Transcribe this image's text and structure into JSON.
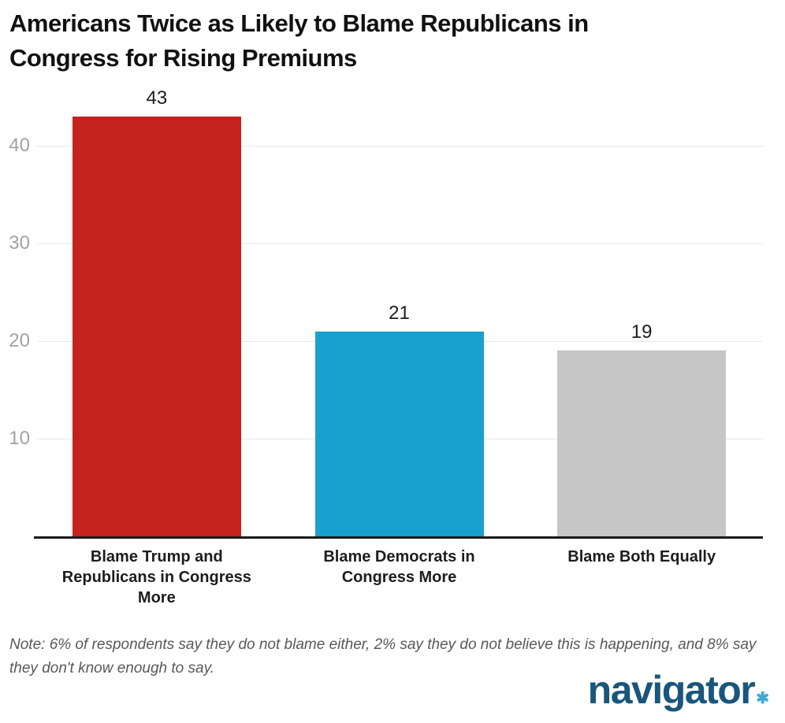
{
  "header": {
    "title_line1": "Americans Twice as Likely to Blame Republicans in",
    "title_line2": "Congress for Rising Premiums"
  },
  "chart_data": {
    "type": "bar",
    "title": "Americans Twice as Likely to Blame Republicans in Congress for Rising Premiums",
    "categories": [
      "Blame Trump and Republicans in Congress More",
      "Blame Democrats in Congress More",
      "Blame Both Equally"
    ],
    "values": [
      43,
      21,
      19
    ],
    "data_labels": [
      "43",
      "21",
      "19"
    ],
    "bar_colors": [
      "#c4221f",
      "#1aa0ce",
      "#c6c6c6"
    ],
    "y_ticks": [
      10,
      20,
      30,
      40
    ],
    "ylim": [
      0,
      45
    ],
    "grid": true,
    "legend": "none",
    "xlabel": "",
    "ylabel": ""
  },
  "footnote": {
    "text": "Note: 6% of respondents say they do not blame either, 2% say they do not believe this is happening, and 8% say they don't know enough to say."
  },
  "logo": {
    "text": "navigator",
    "star": "✱"
  },
  "colors": {
    "title": "#111111",
    "axis_line": "#1a1a1a",
    "gridline": "#e7e7e7",
    "tick_label": "#a2a2a2",
    "value_label": "#1d1d1d",
    "category_label": "#1d1d1d",
    "note": "#58585a",
    "logo_blue": "#1a567c",
    "logo_star": "#3fa9d4"
  }
}
